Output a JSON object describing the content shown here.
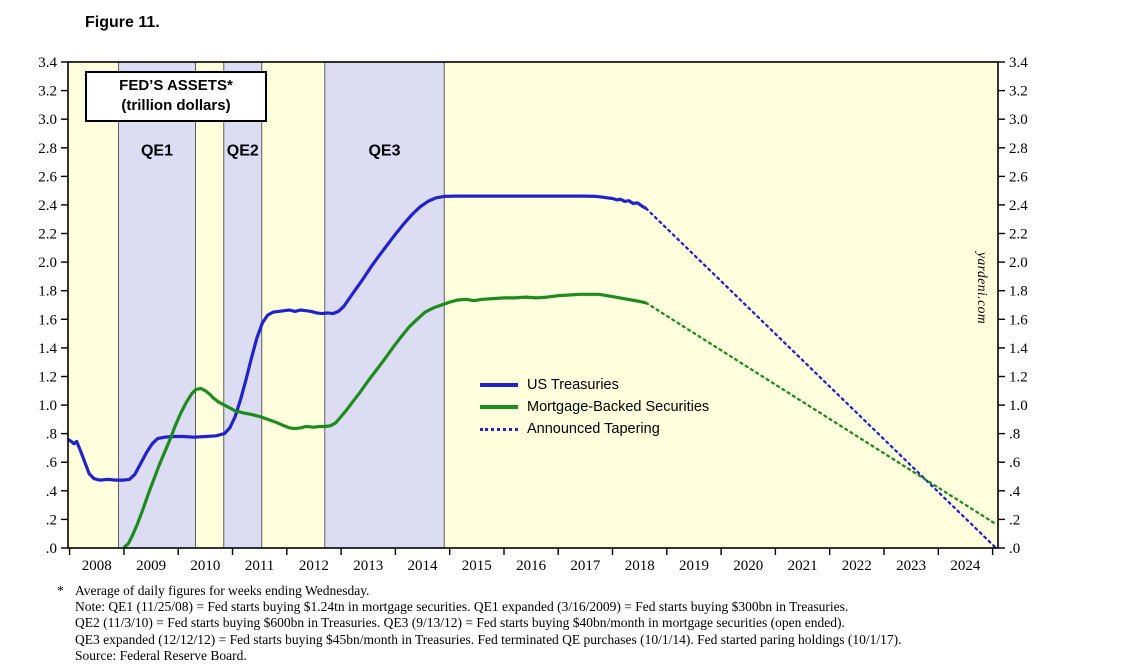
{
  "header": {
    "figure_label": "Figure 11."
  },
  "chart_data": {
    "type": "line",
    "title_line1": "FED’S ASSETS*",
    "title_line2": "(trillion dollars)",
    "xlabel": "",
    "ylabel": "trillion dollars",
    "grid": false,
    "xlim": [
      2007.97,
      2025.1
    ],
    "ylim": [
      0.0,
      3.4
    ],
    "y_ticks": [
      [
        0,
        ".0"
      ],
      [
        0.2,
        ".2"
      ],
      [
        0.4,
        ".4"
      ],
      [
        0.6,
        ".6"
      ],
      [
        0.8,
        ".8"
      ],
      [
        1.0,
        "1.0"
      ],
      [
        1.2,
        "1.2"
      ],
      [
        1.4,
        "1.4"
      ],
      [
        1.6,
        "1.6"
      ],
      [
        1.8,
        "1.8"
      ],
      [
        2.0,
        "2.0"
      ],
      [
        2.2,
        "2.2"
      ],
      [
        2.4,
        "2.4"
      ],
      [
        2.6,
        "2.6"
      ],
      [
        2.8,
        "2.8"
      ],
      [
        3.0,
        "3.0"
      ],
      [
        3.2,
        "3.2"
      ],
      [
        3.4,
        "3.4"
      ]
    ],
    "x_year_labels": [
      2008,
      2009,
      2010,
      2011,
      2012,
      2013,
      2014,
      2015,
      2016,
      2017,
      2018,
      2019,
      2020,
      2021,
      2022,
      2023,
      2024
    ],
    "bands": [
      {
        "label": "QE1",
        "from": 2008.9,
        "to": 2010.32
      },
      {
        "label": "QE2",
        "from": 2010.84,
        "to": 2011.54
      },
      {
        "label": "QE3",
        "from": 2012.7,
        "to": 2014.9
      }
    ],
    "series": [
      {
        "id": "us-treasuries",
        "name": "US Treasuries",
        "style": "solid",
        "color": "#2222cc",
        "points": [
          [
            2007.97,
            0.76
          ],
          [
            2008.03,
            0.745
          ],
          [
            2008.08,
            0.73
          ],
          [
            2008.13,
            0.745
          ],
          [
            2008.2,
            0.68
          ],
          [
            2008.28,
            0.6
          ],
          [
            2008.36,
            0.52
          ],
          [
            2008.45,
            0.485
          ],
          [
            2008.55,
            0.475
          ],
          [
            2008.7,
            0.48
          ],
          [
            2008.85,
            0.475
          ],
          [
            2009.0,
            0.475
          ],
          [
            2009.1,
            0.48
          ],
          [
            2009.2,
            0.515
          ],
          [
            2009.3,
            0.585
          ],
          [
            2009.42,
            0.67
          ],
          [
            2009.52,
            0.73
          ],
          [
            2009.62,
            0.765
          ],
          [
            2009.75,
            0.775
          ],
          [
            2009.9,
            0.78
          ],
          [
            2010.1,
            0.78
          ],
          [
            2010.3,
            0.775
          ],
          [
            2010.5,
            0.78
          ],
          [
            2010.7,
            0.785
          ],
          [
            2010.85,
            0.8
          ],
          [
            2010.95,
            0.84
          ],
          [
            2011.05,
            0.92
          ],
          [
            2011.15,
            1.04
          ],
          [
            2011.25,
            1.18
          ],
          [
            2011.35,
            1.33
          ],
          [
            2011.45,
            1.47
          ],
          [
            2011.55,
            1.575
          ],
          [
            2011.65,
            1.63
          ],
          [
            2011.75,
            1.65
          ],
          [
            2011.85,
            1.655
          ],
          [
            2011.95,
            1.66
          ],
          [
            2012.05,
            1.665
          ],
          [
            2012.15,
            1.655
          ],
          [
            2012.25,
            1.665
          ],
          [
            2012.35,
            1.66
          ],
          [
            2012.45,
            1.655
          ],
          [
            2012.55,
            1.645
          ],
          [
            2012.65,
            1.64
          ],
          [
            2012.75,
            1.645
          ],
          [
            2012.85,
            1.64
          ],
          [
            2012.95,
            1.655
          ],
          [
            2013.05,
            1.69
          ],
          [
            2013.15,
            1.745
          ],
          [
            2013.25,
            1.8
          ],
          [
            2013.4,
            1.88
          ],
          [
            2013.55,
            1.965
          ],
          [
            2013.7,
            2.045
          ],
          [
            2013.85,
            2.12
          ],
          [
            2014.0,
            2.195
          ],
          [
            2014.15,
            2.265
          ],
          [
            2014.3,
            2.33
          ],
          [
            2014.45,
            2.385
          ],
          [
            2014.6,
            2.425
          ],
          [
            2014.75,
            2.45
          ],
          [
            2014.9,
            2.46
          ],
          [
            2015.1,
            2.462
          ],
          [
            2015.4,
            2.462
          ],
          [
            2015.7,
            2.462
          ],
          [
            2016.0,
            2.462
          ],
          [
            2016.3,
            2.462
          ],
          [
            2016.6,
            2.462
          ],
          [
            2016.9,
            2.462
          ],
          [
            2017.2,
            2.462
          ],
          [
            2017.5,
            2.462
          ],
          [
            2017.7,
            2.46
          ],
          [
            2017.8,
            2.455
          ],
          [
            2017.9,
            2.45
          ],
          [
            2018.0,
            2.445
          ],
          [
            2018.08,
            2.435
          ],
          [
            2018.15,
            2.44
          ],
          [
            2018.22,
            2.425
          ],
          [
            2018.3,
            2.43
          ],
          [
            2018.38,
            2.41
          ],
          [
            2018.46,
            2.415
          ],
          [
            2018.55,
            2.39
          ],
          [
            2018.62,
            2.375
          ]
        ]
      },
      {
        "id": "mortgage-backed-securities",
        "name": "Mortgage-Backed Securities",
        "style": "solid",
        "color": "#1e8b1e",
        "points": [
          [
            2009.0,
            0.005
          ],
          [
            2009.08,
            0.03
          ],
          [
            2009.16,
            0.09
          ],
          [
            2009.25,
            0.17
          ],
          [
            2009.35,
            0.27
          ],
          [
            2009.45,
            0.38
          ],
          [
            2009.55,
            0.48
          ],
          [
            2009.65,
            0.58
          ],
          [
            2009.75,
            0.67
          ],
          [
            2009.85,
            0.76
          ],
          [
            2009.95,
            0.86
          ],
          [
            2010.05,
            0.945
          ],
          [
            2010.15,
            1.02
          ],
          [
            2010.25,
            1.08
          ],
          [
            2010.33,
            1.11
          ],
          [
            2010.42,
            1.115
          ],
          [
            2010.5,
            1.1
          ],
          [
            2010.58,
            1.075
          ],
          [
            2010.66,
            1.045
          ],
          [
            2010.75,
            1.02
          ],
          [
            2010.85,
            1.0
          ],
          [
            2010.95,
            0.98
          ],
          [
            2011.05,
            0.96
          ],
          [
            2011.2,
            0.945
          ],
          [
            2011.35,
            0.935
          ],
          [
            2011.5,
            0.92
          ],
          [
            2011.65,
            0.9
          ],
          [
            2011.8,
            0.88
          ],
          [
            2011.95,
            0.855
          ],
          [
            2012.05,
            0.84
          ],
          [
            2012.15,
            0.835
          ],
          [
            2012.25,
            0.84
          ],
          [
            2012.35,
            0.85
          ],
          [
            2012.5,
            0.845
          ],
          [
            2012.6,
            0.85
          ],
          [
            2012.7,
            0.85
          ],
          [
            2012.8,
            0.855
          ],
          [
            2012.9,
            0.875
          ],
          [
            2013.0,
            0.92
          ],
          [
            2013.1,
            0.965
          ],
          [
            2013.2,
            1.015
          ],
          [
            2013.35,
            1.09
          ],
          [
            2013.5,
            1.17
          ],
          [
            2013.65,
            1.245
          ],
          [
            2013.8,
            1.32
          ],
          [
            2013.95,
            1.4
          ],
          [
            2014.1,
            1.475
          ],
          [
            2014.25,
            1.545
          ],
          [
            2014.4,
            1.6
          ],
          [
            2014.55,
            1.65
          ],
          [
            2014.7,
            1.68
          ],
          [
            2014.85,
            1.7
          ],
          [
            2015.0,
            1.72
          ],
          [
            2015.15,
            1.735
          ],
          [
            2015.3,
            1.74
          ],
          [
            2015.45,
            1.73
          ],
          [
            2015.6,
            1.74
          ],
          [
            2015.8,
            1.745
          ],
          [
            2016.0,
            1.75
          ],
          [
            2016.2,
            1.75
          ],
          [
            2016.4,
            1.755
          ],
          [
            2016.6,
            1.75
          ],
          [
            2016.8,
            1.755
          ],
          [
            2017.0,
            1.765
          ],
          [
            2017.2,
            1.77
          ],
          [
            2017.4,
            1.775
          ],
          [
            2017.6,
            1.775
          ],
          [
            2017.75,
            1.775
          ],
          [
            2017.9,
            1.765
          ],
          [
            2018.05,
            1.755
          ],
          [
            2018.2,
            1.745
          ],
          [
            2018.35,
            1.735
          ],
          [
            2018.5,
            1.725
          ],
          [
            2018.62,
            1.715
          ]
        ]
      },
      {
        "id": "treasuries-tapering",
        "name": "Announced Tapering (US Treasuries)",
        "style": "dotted",
        "color": "#2222cc",
        "points": [
          [
            2018.62,
            2.375
          ],
          [
            2025.05,
            0.005
          ]
        ]
      },
      {
        "id": "mbs-tapering",
        "name": "Announced Tapering (Mortgage-Backed Securities)",
        "style": "dotted",
        "color": "#1e8b1e",
        "points": [
          [
            2018.62,
            1.715
          ],
          [
            2025.05,
            0.17
          ]
        ]
      }
    ],
    "legend": [
      {
        "label": "US Treasuries",
        "color": "#2222cc",
        "style": "solid"
      },
      {
        "label": "Mortgage-Backed Securities",
        "color": "#1e8b1e",
        "style": "solid"
      },
      {
        "label": "Announced Tapering",
        "color": "#2222cc",
        "style": "dotted"
      }
    ],
    "legend_position": "inside center-right",
    "watermark": "yardeni.com",
    "colors": {
      "plot_bg": "#ffffde",
      "band": "#dcdcf3",
      "treasuries": "#2222cc",
      "mbs": "#1e8b1e",
      "frame": "#000000"
    }
  },
  "footnotes": {
    "marker": "*",
    "lines": [
      "Average of daily figures for weeks ending Wednesday.",
      "Note: QE1 (11/25/08) = Fed starts buying $1.24tn in mortgage securities. QE1 expanded (3/16/2009) = Fed starts buying $300bn in Treasuries.",
      "QE2 (11/3/10) = Fed starts buying $600bn in Treasuries. QE3 (9/13/12) = Fed starts buying $40bn/month in mortgage securities (open ended).",
      "QE3 expanded (12/12/12) = Fed starts buying $45bn/month in Treasuries. Fed terminated QE purchases (10/1/14). Fed started paring holdings (10/1/17).",
      "Source: Federal Reserve Board."
    ]
  }
}
